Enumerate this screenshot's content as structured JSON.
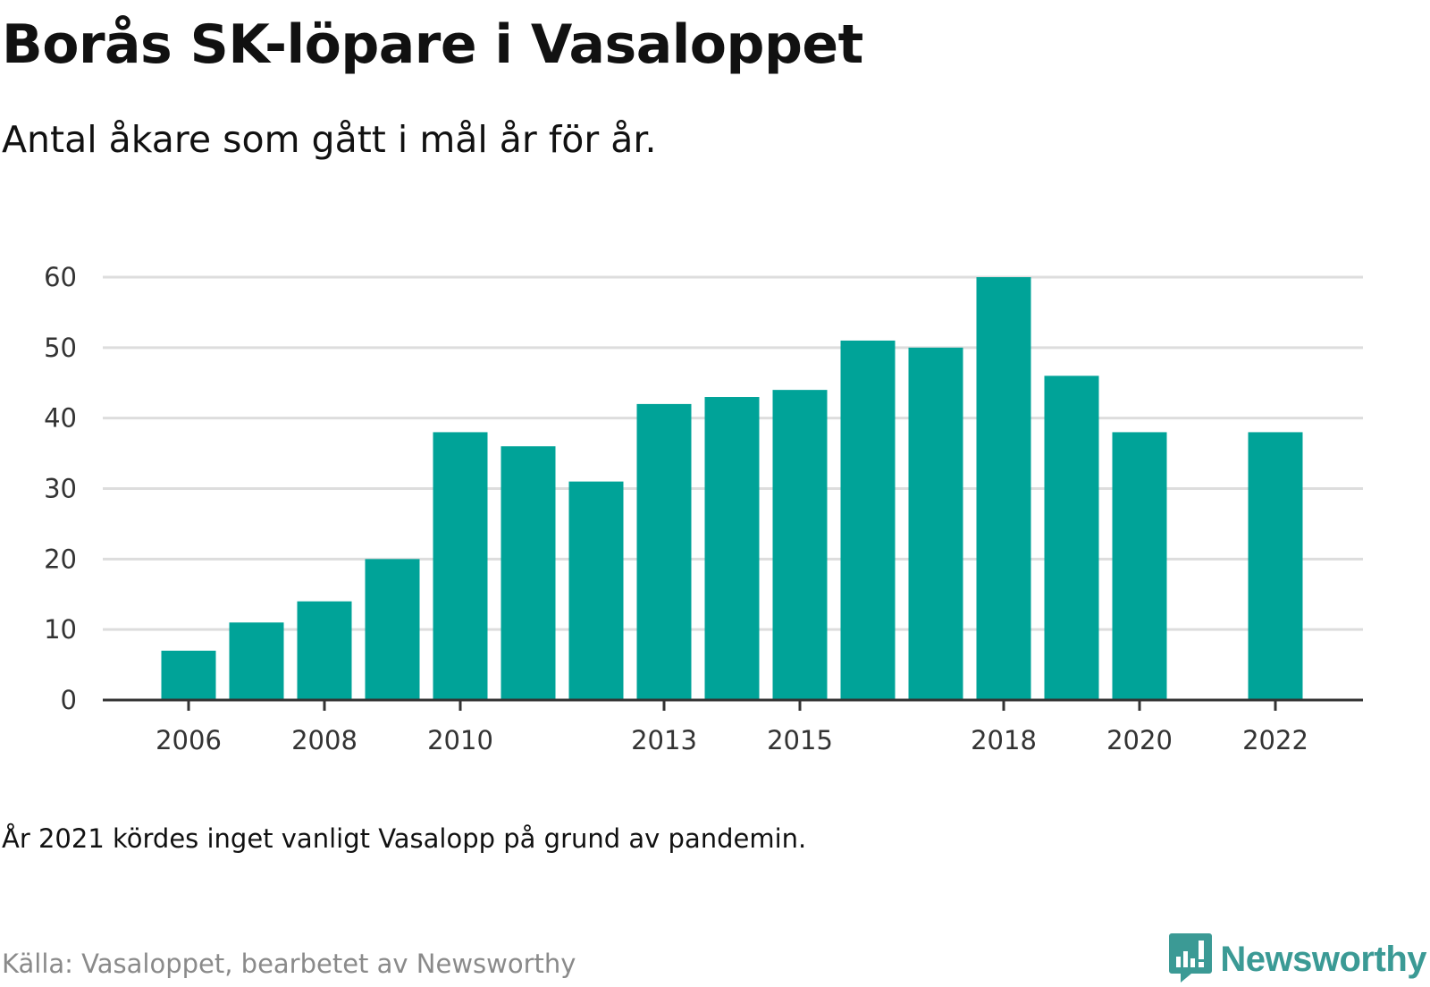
{
  "header": {
    "title": "Borås SK-löpare i Vasaloppet",
    "subtitle": "Antal åkare som gått i mål år för år."
  },
  "footer": {
    "note": "År 2021 kördes inget vanligt Vasalopp på grund av pandemin.",
    "source": "Källa: Vasaloppet, bearbetet av Newsworthy",
    "brand": "Newsworthy"
  },
  "colors": {
    "bar": "#00a398",
    "grid": "#dddddd",
    "axis": "#333333",
    "brand": "#3b9a95"
  },
  "icons": {
    "logo": "newsworthy-chart-bubble-icon"
  },
  "chart_data": {
    "type": "bar",
    "categories": [
      2006,
      2007,
      2008,
      2009,
      2010,
      2011,
      2012,
      2013,
      2014,
      2015,
      2016,
      2017,
      2018,
      2019,
      2020,
      2021,
      2022
    ],
    "values": [
      7,
      11,
      14,
      20,
      38,
      36,
      31,
      42,
      43,
      44,
      51,
      50,
      60,
      46,
      38,
      null,
      38
    ],
    "x_tick_labels": [
      "2006",
      "2008",
      "2010",
      "2013",
      "2015",
      "2018",
      "2020",
      "2022"
    ],
    "y_ticks": [
      0,
      10,
      20,
      30,
      40,
      50,
      60
    ],
    "ylim": [
      0,
      60
    ],
    "xlabel": "",
    "ylabel": "",
    "grid": true,
    "legend": "none"
  }
}
